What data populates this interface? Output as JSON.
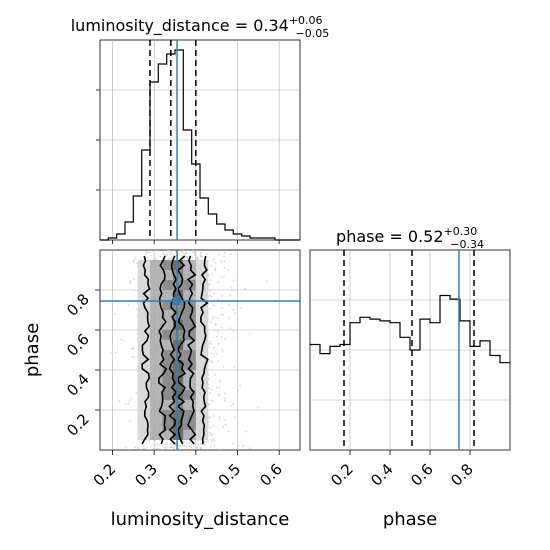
{
  "chart_data": {
    "type": "corner",
    "parameters": [
      "luminosity_distance",
      "phase"
    ],
    "truth": {
      "luminosity_distance": 0.355,
      "phase": 0.745
    },
    "colors": {
      "truth": "#3b7ab5",
      "line": "#000000",
      "grid": "#b0b0b0",
      "scatter": "#c8c8c8"
    },
    "marginals": [
      {
        "parameter": "luminosity_distance",
        "title_prefix": "luminosity_distance = ",
        "median": "0.34",
        "plus": "+0.06",
        "minus": "−0.05",
        "quantiles": [
          0.29,
          0.34,
          0.4
        ],
        "xlim": [
          0.17,
          0.65
        ],
        "ylim": [
          0,
          1.0
        ],
        "bin_edges": [
          0.17,
          0.19,
          0.21,
          0.23,
          0.25,
          0.27,
          0.29,
          0.31,
          0.33,
          0.35,
          0.37,
          0.39,
          0.41,
          0.43,
          0.45,
          0.47,
          0.49,
          0.51,
          0.53,
          0.55,
          0.57,
          0.59,
          0.61,
          0.63,
          0.65
        ],
        "counts": [
          0.0,
          0.01,
          0.03,
          0.09,
          0.22,
          0.45,
          0.79,
          0.88,
          0.93,
          0.95,
          0.55,
          0.38,
          0.21,
          0.13,
          0.08,
          0.05,
          0.03,
          0.02,
          0.01,
          0.01,
          0.01,
          0.0,
          0.0,
          0.0
        ],
        "xticks": [
          0.2,
          0.3,
          0.4,
          0.5,
          0.6
        ],
        "xtick_labels": [
          "0.2",
          "0.3",
          "0.4",
          "0.5",
          "0.6"
        ],
        "xlabel": "luminosity_distance"
      },
      {
        "parameter": "phase",
        "title_prefix": "phase = ",
        "median": "0.52",
        "plus": "+0.30",
        "minus": "−0.34",
        "quantiles": [
          0.17,
          0.51,
          0.82
        ],
        "xlim": [
          0.0,
          1.0
        ],
        "ylim": [
          0,
          1.1
        ],
        "bin_edges": [
          0.0,
          0.05,
          0.1,
          0.15,
          0.2,
          0.25,
          0.3,
          0.35,
          0.4,
          0.45,
          0.5,
          0.55,
          0.6,
          0.65,
          0.7,
          0.75,
          0.8,
          0.85,
          0.9,
          0.95,
          1.0
        ],
        "counts": [
          0.58,
          0.53,
          0.57,
          0.58,
          0.7,
          0.73,
          0.72,
          0.71,
          0.7,
          0.62,
          0.55,
          0.72,
          0.7,
          0.85,
          0.83,
          0.71,
          0.57,
          0.6,
          0.52,
          0.48
        ],
        "xticks": [
          0.2,
          0.4,
          0.6,
          0.8
        ],
        "xtick_labels": [
          "0.2",
          "0.4",
          "0.6",
          "0.8"
        ],
        "xlabel": "phase"
      }
    ],
    "joint": {
      "x": "luminosity_distance",
      "y": "phase",
      "xlim": [
        0.17,
        0.65
      ],
      "ylim": [
        0.0,
        1.0
      ],
      "yticks": [
        0.2,
        0.4,
        0.6,
        0.8
      ],
      "ytick_labels": [
        "0.2",
        "0.4",
        "0.6",
        "0.8"
      ],
      "ylabel": "phase",
      "contour_levels": [
        {
          "x_left": 0.345,
          "x_right": 0.365
        },
        {
          "x_left": 0.32,
          "x_right": 0.39
        },
        {
          "x_left": 0.28,
          "x_right": 0.42
        }
      ]
    }
  }
}
